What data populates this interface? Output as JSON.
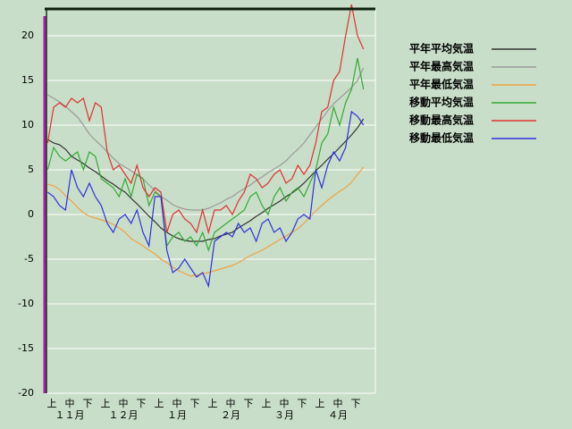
{
  "chart_data": {
    "type": "line",
    "categories": [
      null,
      "上",
      null,
      null,
      "中",
      null,
      null,
      "下",
      null,
      null,
      "上",
      null,
      null,
      "中",
      null,
      null,
      "下",
      null,
      null,
      "上",
      null,
      null,
      "中",
      null,
      null,
      "下",
      null,
      null,
      "上",
      null,
      null,
      "中",
      null,
      null,
      "下",
      null,
      null,
      "上",
      null,
      null,
      "中",
      null,
      null,
      "下",
      null,
      null,
      "上",
      null,
      null,
      "中",
      null,
      null,
      "下",
      null
    ],
    "months": [
      "１１月",
      "１２月",
      "１月",
      "２月",
      "３月",
      "４月"
    ],
    "ylim": [
      -20,
      23
    ],
    "yticks": [
      -20,
      -15,
      -10,
      -5,
      0,
      5,
      10,
      15,
      20
    ],
    "grid": true,
    "series": [
      {
        "name": "平年平均気温",
        "color": "#333333",
        "values": [
          8.4,
          8,
          7.8,
          7.3,
          6.5,
          6.1,
          5.7,
          5.2,
          4.8,
          4.3,
          3.8,
          3.4,
          2.9,
          2.5,
          1.8,
          1.2,
          0.5,
          -0.2,
          -0.8,
          -1.5,
          -2,
          -2.4,
          -2.7,
          -2.9,
          -3,
          -3,
          -3,
          -2.8,
          -2.7,
          -2.4,
          -2.2,
          -2,
          -1.5,
          -1.1,
          -0.7,
          -0.2,
          0.2,
          0.7,
          1.1,
          1.5,
          2,
          2.4,
          2.9,
          3.5,
          4.2,
          4.9,
          5.5,
          6.2,
          6.8,
          7.5,
          8.2,
          8.9,
          9.7,
          10.7
        ]
      },
      {
        "name": "平年最高気温",
        "color": "#999999",
        "values": [
          13.4,
          13,
          12.6,
          12.1,
          11.5,
          10.9,
          10,
          9,
          8.3,
          7.7,
          7,
          6.3,
          5.7,
          5.3,
          4.9,
          4.4,
          4,
          3.3,
          2.7,
          2,
          1.6,
          1.1,
          0.8,
          0.6,
          0.5,
          0.5,
          0.5,
          0.7,
          1,
          1.3,
          1.7,
          2,
          2.5,
          2.9,
          3.3,
          3.8,
          4.2,
          4.7,
          5.1,
          5.5,
          6,
          6.7,
          7.3,
          8,
          8.9,
          9.8,
          10.7,
          11.6,
          12.4,
          13,
          13.6,
          14.2,
          15,
          16.4
        ]
      },
      {
        "name": "平年最低気温",
        "color": "#f0a040",
        "values": [
          3.4,
          3.2,
          2.8,
          2.1,
          1.5,
          0.8,
          0.2,
          -0.2,
          -0.4,
          -0.6,
          -0.8,
          -1.1,
          -1.5,
          -2,
          -2.7,
          -3.1,
          -3.5,
          -4,
          -4.4,
          -5,
          -5.4,
          -5.9,
          -6.3,
          -6.6,
          -6.9,
          -6.8,
          -6.6,
          -6.5,
          -6.3,
          -6.1,
          -5.9,
          -5.7,
          -5.4,
          -5,
          -4.6,
          -4.3,
          -4,
          -3.6,
          -3.2,
          -2.8,
          -2.4,
          -2,
          -1.6,
          -1,
          -0.3,
          0.4,
          1,
          1.6,
          2.1,
          2.6,
          3,
          3.6,
          4.5,
          5.3
        ]
      },
      {
        "name": "移動平均気温",
        "color": "#33aa33",
        "values": [
          5,
          7.5,
          6.5,
          6,
          6.5,
          7,
          5,
          7,
          6.5,
          4,
          3.5,
          3,
          2,
          4,
          2,
          4.5,
          4,
          1,
          2.5,
          2,
          -3.5,
          -2.5,
          -2,
          -3,
          -2.5,
          -3.5,
          -2,
          -4,
          -2,
          -1.5,
          -1,
          -0.5,
          0,
          0.5,
          2,
          2.5,
          1,
          0,
          2,
          3,
          1.5,
          2.5,
          3,
          2,
          3.5,
          5,
          8,
          9,
          12,
          10,
          12.5,
          14,
          17.5,
          14
        ]
      },
      {
        "name": "移動最高気温",
        "color": "#e03030",
        "values": [
          8,
          12,
          12.5,
          12,
          13,
          12.5,
          13,
          10.5,
          12.5,
          12,
          7,
          5,
          5.5,
          4.5,
          3.5,
          5.5,
          3,
          2,
          3,
          2.5,
          -2,
          0,
          0.5,
          -0.5,
          -1,
          -2,
          0.5,
          -2,
          0.5,
          0.5,
          1,
          0,
          1.5,
          2.5,
          4.5,
          4,
          3,
          3.5,
          4.5,
          5,
          3.5,
          4,
          5.5,
          4.5,
          5.5,
          8,
          11.5,
          12,
          15,
          16,
          20,
          23.5,
          20,
          18.5
        ]
      },
      {
        "name": "移動最低気温",
        "color": "#3030e0",
        "values": [
          2.5,
          2,
          1,
          0.5,
          5,
          3,
          2,
          3.5,
          2,
          1,
          -1,
          -2,
          -0.5,
          0,
          -1,
          0.5,
          -2,
          -3.5,
          2,
          2,
          -4,
          -6.5,
          -6,
          -5,
          -6,
          -7,
          -6.5,
          -8,
          -3,
          -2.5,
          -2,
          -2.5,
          -1,
          -2,
          -1.5,
          -3,
          -1,
          -0.5,
          -2,
          -1.5,
          -3,
          -2,
          -0.5,
          0,
          -0.5,
          5,
          3,
          5.5,
          7,
          6,
          7.5,
          11.5,
          11,
          10
        ]
      }
    ]
  }
}
